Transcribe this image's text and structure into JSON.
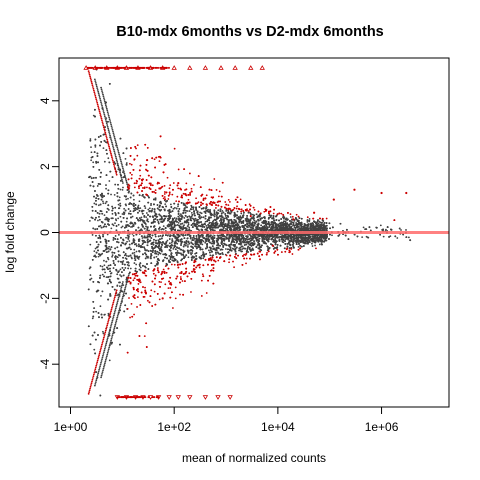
{
  "chart_data": {
    "type": "scatter",
    "title": "B10-mdx 6months vs D2-mdx 6months",
    "xlabel": "mean of normalized counts",
    "ylabel": "log fold change",
    "x_scale": "log10",
    "xlim": [
      0.6,
      20000000
    ],
    "ylim": [
      -5.3,
      5.3
    ],
    "x_ticks": [
      1,
      100,
      10000,
      1000000
    ],
    "x_tick_labels": [
      "1e+00",
      "1e+02",
      "1e+04",
      "1e+06"
    ],
    "y_ticks": [
      -4,
      -2,
      0,
      2,
      4
    ],
    "y_tick_labels": [
      "-4",
      "-2",
      "0",
      "2",
      "4"
    ],
    "hline": {
      "y": 0,
      "color": "#ff6b6b"
    },
    "colors": {
      "not_significant": "#404040",
      "significant": "#cc0000",
      "reference_line": "#ff6b6b"
    },
    "series": [],
    "sample_points": {
      "not_significant": [
        [
          3,
          0.1
        ],
        [
          5,
          -0.5
        ],
        [
          8,
          1.2
        ],
        [
          12,
          -1.5
        ],
        [
          20,
          0.6
        ],
        [
          40,
          -0.3
        ],
        [
          80,
          0.4
        ],
        [
          150,
          -0.1
        ],
        [
          300,
          0.2
        ],
        [
          700,
          -0.1
        ],
        [
          1500,
          0.05
        ],
        [
          5000,
          0.02
        ],
        [
          15000,
          -0.05
        ],
        [
          30000,
          0.1
        ]
      ],
      "significant": [
        [
          30,
          2.2
        ],
        [
          60,
          -2.0
        ],
        [
          120,
          1.5
        ],
        [
          250,
          -1.2
        ],
        [
          600,
          0.9
        ],
        [
          1200,
          -0.7
        ],
        [
          3000,
          0.5
        ],
        [
          8000,
          -0.4
        ],
        [
          20000,
          0.4
        ],
        [
          50000,
          0.6
        ],
        [
          120000,
          1.0
        ],
        [
          300000,
          1.3
        ],
        [
          1000000,
          1.2
        ],
        [
          3000000,
          1.2
        ]
      ]
    },
    "outlier_points": {
      "top_clipped_x": [
        2,
        3,
        5,
        8,
        12,
        20,
        35,
        60,
        100,
        200,
        400,
        800,
        1500,
        3000,
        5000
      ],
      "bottom_clipped_x": [
        8,
        12,
        18,
        25,
        35,
        50,
        80,
        120,
        200,
        400,
        700,
        1200
      ],
      "top_clipped_y": 5,
      "bottom_clipped_y": -5
    }
  }
}
